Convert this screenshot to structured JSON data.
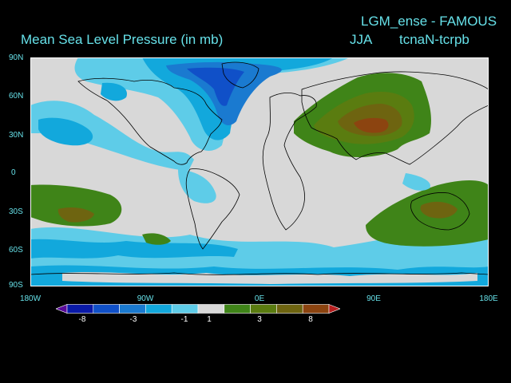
{
  "titles": {
    "main": "Mean Sea Level Pressure (in mb)",
    "model": "LGM_ense - FAMOUS",
    "season": "JJA",
    "difference": "tcnaN-tcrpb"
  },
  "lat_labels": [
    "90N",
    "60N",
    "30N",
    "0",
    "30S",
    "60S",
    "90S"
  ],
  "lon_labels": [
    "180W",
    "90W",
    "0E",
    "90E",
    "180E"
  ],
  "colorbar": {
    "tick_labels": [
      "-8",
      "-3",
      "-1",
      "1",
      "3",
      "8"
    ],
    "colors": [
      "#5a0a9a",
      "#0a1aa8",
      "#1050c8",
      "#1a7ad0",
      "#12a8dc",
      "#5ecce8",
      "#d8d8d8",
      "#3f8418",
      "#5a7c10",
      "#6e6410",
      "#8c4410",
      "#b81e1e"
    ]
  },
  "map": {
    "ocean_background": "#d8d8d8",
    "coast_color": "#000000"
  }
}
